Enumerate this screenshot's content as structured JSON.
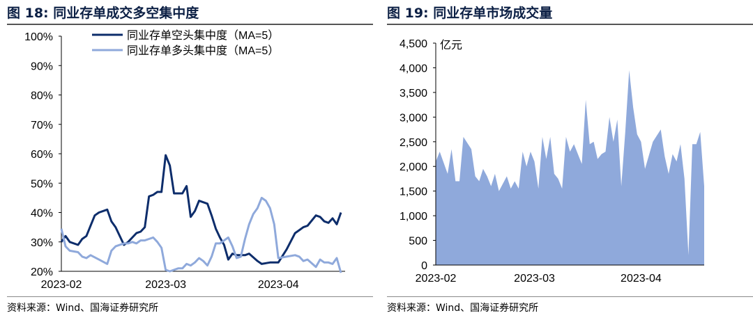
{
  "left": {
    "title": "图 18:  同业存单成交多空集中度",
    "source": "资料来源：Wind、国海证券研究所",
    "chart_data": {
      "type": "line",
      "ylim": [
        20,
        100
      ],
      "yticks": [
        "20%",
        "30%",
        "40%",
        "50%",
        "60%",
        "70%",
        "80%",
        "90%",
        "100%"
      ],
      "ytick_values": [
        20,
        30,
        40,
        50,
        60,
        70,
        80,
        90,
        100
      ],
      "xticks": [
        "2023-02",
        "2023-03",
        "2023-04"
      ],
      "xtick_values": [
        0,
        25,
        52
      ],
      "xlim": [
        0,
        68
      ],
      "legend_position": "top",
      "series": [
        {
          "name": "同业存单空头集中度（MA=5）",
          "color": "#0d2d6b",
          "x": [
            0,
            1,
            2,
            4,
            5,
            6,
            8,
            9,
            11,
            12,
            13,
            15,
            16,
            17,
            18,
            19,
            20,
            21,
            22,
            23,
            24,
            25,
            26,
            27,
            28,
            29,
            30,
            31,
            32,
            33,
            34,
            35,
            36,
            37,
            38,
            39,
            40,
            41,
            42,
            43,
            44,
            45,
            47,
            48,
            50,
            51,
            52,
            54,
            56,
            57,
            58,
            59,
            61,
            62,
            63,
            64,
            65,
            66,
            67
          ],
          "y": [
            30,
            32,
            30,
            29,
            31,
            32,
            39,
            40,
            41,
            37,
            35,
            29,
            30,
            31.5,
            33,
            33.5,
            35,
            45.5,
            46,
            47,
            47,
            59.5,
            56,
            46.5,
            46.5,
            46.5,
            49,
            38.5,
            40.5,
            44,
            43.5,
            43,
            39,
            34.5,
            31.5,
            29,
            24,
            26,
            25.5,
            25.5,
            25.5,
            26,
            23.5,
            22.5,
            23,
            23,
            23,
            27.5,
            33,
            34,
            35,
            35.5,
            39,
            38.5,
            37,
            36.5,
            38,
            36,
            40
          ]
        },
        {
          "name": "同业存单多头集中度（MA=5）",
          "color": "#8fa9db",
          "x": [
            0,
            1,
            2,
            4,
            5,
            6,
            7,
            9,
            11,
            12,
            13,
            15,
            16,
            17,
            18,
            19,
            20,
            21,
            22,
            23,
            24,
            25,
            26,
            27,
            28,
            29,
            30,
            31,
            32,
            33,
            34,
            35,
            36,
            37,
            38,
            40,
            41,
            42,
            43,
            44,
            45,
            46,
            47,
            48,
            49,
            50,
            51,
            52,
            54,
            56,
            57,
            58,
            59,
            61,
            62,
            63,
            64,
            65,
            66,
            67
          ],
          "y": [
            34.5,
            28.5,
            27,
            26.5,
            25,
            24.5,
            25.5,
            24,
            22.5,
            27,
            28.5,
            29.5,
            29.5,
            30,
            29.5,
            30.5,
            30.5,
            31,
            31.5,
            30,
            28,
            20.5,
            20,
            20.5,
            21,
            21,
            22.5,
            22,
            23,
            24.5,
            23.5,
            22,
            25,
            29.5,
            29.5,
            31.5,
            28.5,
            24.5,
            25,
            31,
            36,
            39.5,
            41.5,
            45,
            44,
            41.5,
            36,
            24.5,
            25,
            25.5,
            25,
            23.5,
            24,
            21.5,
            24,
            23,
            23,
            22.5,
            24.5,
            19.5
          ]
        }
      ]
    }
  },
  "right": {
    "title": "图 19:  同业存单市场成交量",
    "source": "资料来源：Wind、国海证券研究所",
    "chart_data": {
      "type": "area",
      "unit_label": "亿元",
      "ylim": [
        0,
        4500
      ],
      "yticks": [
        "0",
        "500",
        "1,000",
        "1,500",
        "2,000",
        "2,500",
        "3,000",
        "3,500",
        "4,000",
        "4,500"
      ],
      "ytick_values": [
        0,
        500,
        1000,
        1500,
        2000,
        2500,
        3000,
        3500,
        4000,
        4500
      ],
      "xticks": [
        "2023-02",
        "2023-03",
        "2023-04"
      ],
      "xtick_values": [
        0,
        25,
        52
      ],
      "xlim": [
        0,
        68
      ],
      "series": [
        {
          "name": "",
          "color": "#8fa9db",
          "x": [
            0,
            1,
            3,
            4,
            5,
            6,
            7,
            9,
            10,
            11,
            12,
            13,
            14,
            15,
            16,
            18,
            19,
            20,
            21,
            22,
            23,
            24,
            25,
            26,
            27,
            28,
            29,
            30,
            31,
            32,
            33,
            34,
            35,
            37,
            38,
            39,
            40,
            41,
            42,
            43,
            44,
            45,
            46,
            47,
            48,
            49,
            50,
            51,
            52,
            53,
            55,
            57,
            58,
            59,
            60,
            61,
            62,
            63,
            64,
            65,
            66,
            67,
            68
          ],
          "y": [
            2100,
            2300,
            1850,
            2350,
            1700,
            1700,
            2600,
            2350,
            1800,
            1700,
            1950,
            1800,
            1600,
            1850,
            1500,
            1800,
            1550,
            1700,
            1550,
            2300,
            2000,
            2300,
            2100,
            1550,
            2600,
            2150,
            2600,
            1850,
            1750,
            1550,
            2600,
            2300,
            2450,
            2050,
            3350,
            2450,
            2500,
            2150,
            2250,
            2300,
            3000,
            2500,
            2950,
            1600,
            2700,
            3950,
            3200,
            2650,
            2500,
            1950,
            2500,
            2750,
            2200,
            1850,
            2250,
            2100,
            2450,
            1750,
            200,
            2450,
            2450,
            2700,
            1600
          ]
        }
      ]
    }
  }
}
